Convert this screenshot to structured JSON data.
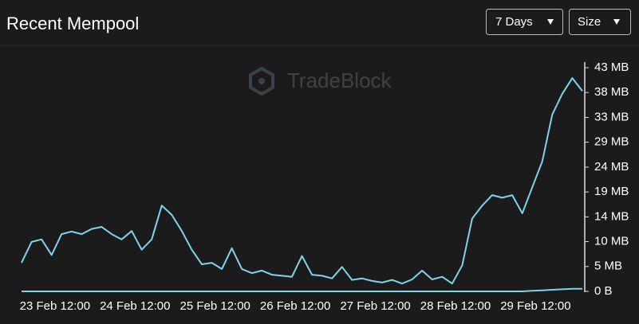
{
  "chart_data": {
    "type": "line",
    "title": "Recent Mempool",
    "controls": {
      "range": "7 Days",
      "metric": "Size"
    },
    "watermark": "TradeBlock",
    "x": [
      "23 Feb 02:00",
      "23 Feb 05:00",
      "23 Feb 08:00",
      "23 Feb 11:00",
      "23 Feb 14:00",
      "23 Feb 17:00",
      "23 Feb 20:00",
      "23 Feb 23:00",
      "24 Feb 02:00",
      "24 Feb 05:00",
      "24 Feb 08:00",
      "24 Feb 11:00",
      "24 Feb 14:00",
      "24 Feb 17:00",
      "24 Feb 20:00",
      "24 Feb 23:00",
      "25 Feb 02:00",
      "25 Feb 05:00",
      "25 Feb 08:00",
      "25 Feb 11:00",
      "25 Feb 14:00",
      "25 Feb 17:00",
      "25 Feb 20:00",
      "25 Feb 23:00",
      "26 Feb 02:00",
      "26 Feb 05:00",
      "26 Feb 08:00",
      "26 Feb 11:00",
      "26 Feb 14:00",
      "26 Feb 17:00",
      "26 Feb 20:00",
      "26 Feb 23:00",
      "27 Feb 02:00",
      "27 Feb 05:00",
      "27 Feb 08:00",
      "27 Feb 11:00",
      "27 Feb 14:00",
      "27 Feb 17:00",
      "27 Feb 20:00",
      "27 Feb 23:00",
      "28 Feb 02:00",
      "28 Feb 05:00",
      "28 Feb 08:00",
      "28 Feb 11:00",
      "28 Feb 14:00",
      "28 Feb 17:00",
      "28 Feb 20:00",
      "28 Feb 23:00",
      "29 Feb 02:00",
      "29 Feb 05:00",
      "29 Feb 08:00",
      "29 Feb 11:00",
      "29 Feb 14:00",
      "29 Feb 17:00",
      "29 Feb 20:00",
      "29 Feb 23:00",
      "1 Mar 02:00"
    ],
    "series": [
      {
        "color": "#7fd3ea",
        "values": [
          5.5,
          9.5,
          10,
          7,
          11,
          11.5,
          11,
          12,
          12.4,
          11,
          10,
          11.6,
          8,
          10,
          16.5,
          14.7,
          11.6,
          8,
          5.2,
          5.5,
          4.3,
          8.3,
          4.3,
          3.5,
          4,
          3.2,
          3,
          2.8,
          6.8,
          3.2,
          3,
          2.5,
          4.7,
          2.2,
          2.5,
          2,
          1.7,
          2.2,
          1.5,
          2.3,
          4,
          2.3,
          2.8,
          1.5,
          5,
          14,
          16.5,
          18.5,
          18,
          18.5,
          15,
          20,
          25,
          34,
          38,
          41,
          38.5
        ]
      },
      {
        "color": "#7fd3ea",
        "values": [
          0,
          0,
          0,
          0,
          0,
          0,
          0,
          0,
          0,
          0,
          0,
          0,
          0,
          0,
          0,
          0,
          0,
          0,
          0,
          0,
          0,
          0,
          0,
          0,
          0,
          0,
          0,
          0,
          0,
          0,
          0,
          0,
          0,
          0,
          0,
          0,
          0,
          0,
          0,
          0,
          0,
          0,
          0,
          0,
          0,
          0,
          0,
          0,
          0,
          0,
          0,
          0.1,
          0.2,
          0.3,
          0.4,
          0.5,
          0.5
        ]
      }
    ],
    "xticks": [
      "23 Feb 12:00",
      "24 Feb 12:00",
      "25 Feb 12:00",
      "26 Feb 12:00",
      "27 Feb 12:00",
      "28 Feb 12:00",
      "29 Feb 12:00"
    ],
    "ylim": [
      0,
      43
    ],
    "yticks": [
      {
        "value": 0,
        "label": "0 B"
      },
      {
        "value": 4.78,
        "label": "5 MB"
      },
      {
        "value": 9.56,
        "label": "10 MB"
      },
      {
        "value": 14.33,
        "label": "14 MB"
      },
      {
        "value": 19.11,
        "label": "19 MB"
      },
      {
        "value": 23.89,
        "label": "24 MB"
      },
      {
        "value": 28.67,
        "label": "29 MB"
      },
      {
        "value": 33.44,
        "label": "33 MB"
      },
      {
        "value": 38.22,
        "label": "38 MB"
      },
      {
        "value": 43,
        "label": "43 MB"
      }
    ]
  }
}
